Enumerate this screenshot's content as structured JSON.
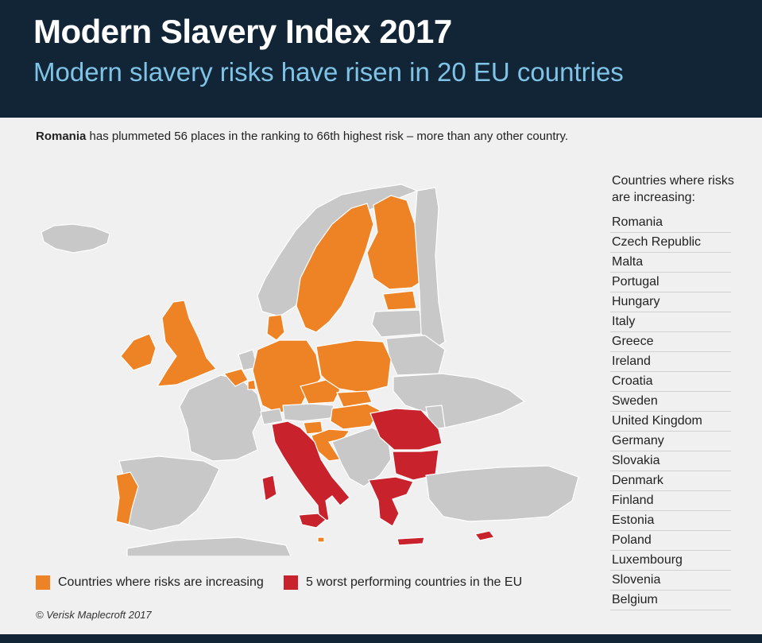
{
  "header": {
    "title": "Modern Slavery Index 2017",
    "subtitle": "Modern slavery risks have risen in 20 EU countries"
  },
  "intro": {
    "highlight": "Romania",
    "text": " has plummeted 56 places in the ranking to 66th highest risk – more than any other country."
  },
  "list": {
    "heading": "Countries where risks are increasing:",
    "countries": [
      "Romania",
      "Czech Republic",
      "Malta",
      "Portugal",
      "Hungary",
      "Italy",
      "Greece",
      "Ireland",
      "Croatia",
      "Sweden",
      "United Kingdom",
      "Germany",
      "Slovakia",
      "Denmark",
      "Finland",
      "Estonia",
      "Poland",
      "Luxembourg",
      "Slovenia",
      "Belgium"
    ]
  },
  "legend": {
    "increasing_label": "Countries where risks are increasing",
    "worst_label": "5 worst performing countries in the EU",
    "increasing_color": "#ee8326",
    "worst_color": "#c8232c",
    "other_color": "#c8c8c8"
  },
  "credit": "© Verisk Maplecroft 2017",
  "map_regions": {
    "increasing": [
      "Portugal",
      "Ireland",
      "United Kingdom",
      "Belgium",
      "Luxembourg",
      "Germany",
      "Denmark",
      "Sweden",
      "Finland",
      "Estonia",
      "Poland",
      "Czech Republic",
      "Slovakia",
      "Hungary",
      "Slovenia",
      "Croatia",
      "Malta"
    ],
    "worst": [
      "Romania",
      "Bulgaria",
      "Greece",
      "Italy",
      "Cyprus"
    ]
  }
}
